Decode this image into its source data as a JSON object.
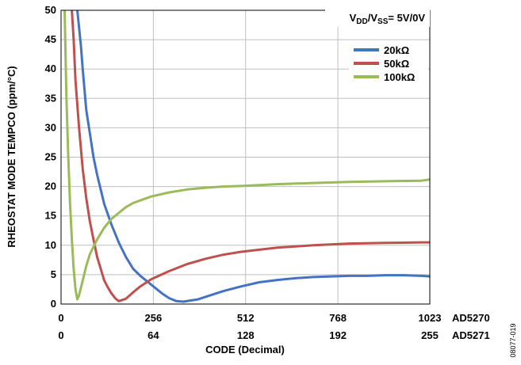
{
  "chart_data": {
    "type": "line",
    "ylabel": "RHEOSTAT MODE TEMPCO (ppm/°C)",
    "xlabel": "CODE (Decimal)",
    "ylim": [
      0,
      50
    ],
    "yticks": [
      "0",
      "5",
      "10",
      "15",
      "20",
      "25",
      "30",
      "35",
      "40",
      "45",
      "50"
    ],
    "xlim": [
      0,
      1023
    ],
    "xticks_primary": [
      "0",
      "256",
      "512",
      "768",
      "1023"
    ],
    "xticks_secondary": [
      "0",
      "64",
      "128",
      "192",
      "255"
    ],
    "xtick_part_primary": "AD5270",
    "xtick_part_secondary": "AD5271",
    "annotation": {
      "V": "V",
      "DD": "DD",
      "sep": "/V",
      "SS": "SS",
      "val": "= 5V/0V"
    },
    "figure_id": "08077-019",
    "grid": true,
    "legend_position": "top-right",
    "series": [
      {
        "name": "20kΩ",
        "color": "#4472C4",
        "x": [
          45,
          55,
          60,
          70,
          80,
          90,
          100,
          120,
          140,
          160,
          180,
          200,
          220,
          240,
          260,
          280,
          300,
          320,
          340,
          360,
          380,
          400,
          450,
          500,
          550,
          600,
          650,
          700,
          750,
          800,
          850,
          900,
          950,
          1000,
          1023
        ],
        "y": [
          50,
          44,
          40,
          33,
          29,
          25,
          22,
          17,
          13.5,
          10.5,
          8,
          6,
          4.8,
          3.8,
          2.8,
          1.8,
          1.0,
          0.5,
          0.4,
          0.6,
          0.8,
          1.2,
          2.2,
          3.0,
          3.7,
          4.1,
          4.4,
          4.6,
          4.7,
          4.8,
          4.8,
          4.9,
          4.9,
          4.8,
          4.7
        ]
      },
      {
        "name": "50kΩ",
        "color": "#C0504D",
        "x": [
          30,
          35,
          40,
          50,
          60,
          70,
          80,
          90,
          100,
          110,
          120,
          130,
          140,
          150,
          160,
          180,
          200,
          220,
          250,
          300,
          350,
          400,
          450,
          500,
          600,
          700,
          800,
          900,
          1000,
          1023
        ],
        "y": [
          50,
          45,
          38,
          30,
          23,
          18,
          14,
          11,
          8,
          6,
          4,
          2.8,
          1.8,
          1,
          0.5,
          0.9,
          2.0,
          3.0,
          4.2,
          5.6,
          6.8,
          7.7,
          8.4,
          8.9,
          9.6,
          10.0,
          10.3,
          10.4,
          10.5,
          10.5
        ]
      },
      {
        "name": "100kΩ",
        "color": "#9BBB59",
        "x": [
          10,
          15,
          20,
          25,
          30,
          35,
          40,
          45,
          50,
          60,
          70,
          80,
          100,
          120,
          140,
          160,
          180,
          200,
          250,
          300,
          350,
          400,
          450,
          500,
          600,
          700,
          800,
          900,
          1000,
          1023
        ],
        "y": [
          50,
          35,
          25,
          17,
          11,
          6,
          2.5,
          0.8,
          1.5,
          4,
          6.5,
          8.5,
          11,
          13,
          14.5,
          15.5,
          16.5,
          17.2,
          18.3,
          19,
          19.5,
          19.8,
          20,
          20.1,
          20.4,
          20.6,
          20.8,
          20.9,
          21.0,
          21.2
        ]
      }
    ]
  }
}
